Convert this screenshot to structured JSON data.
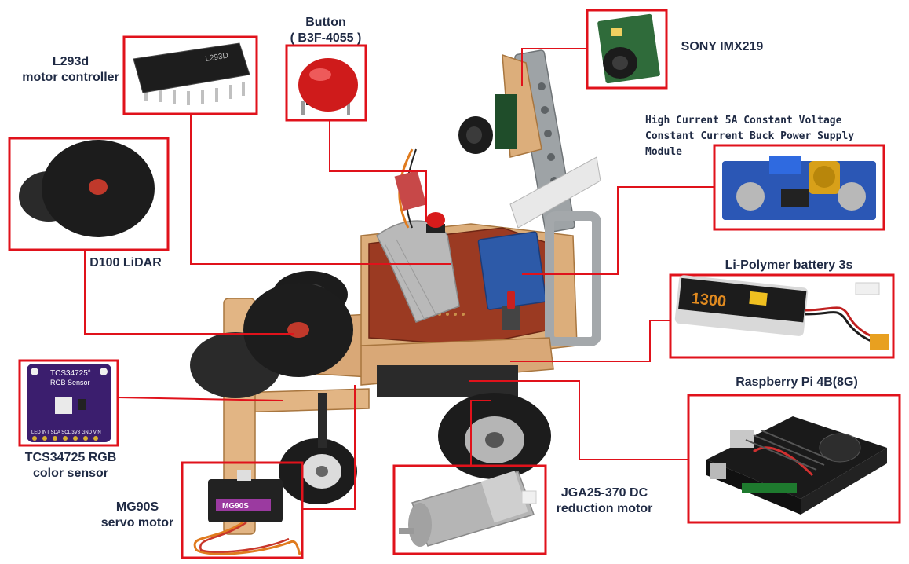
{
  "colors": {
    "callout": "#e0121b",
    "label_text": "#1f2a44"
  },
  "components": {
    "button": {
      "line1": "Button",
      "line2": "( B3F-4055 )"
    },
    "camera": {
      "name": "SONY IMX219"
    },
    "l293d": {
      "line1": "L293d",
      "line2": "motor controller",
      "chip_marking": "L293D"
    },
    "buck": {
      "line1": "High Current 5A Constant Voltage",
      "line2": "Constant Current Buck Power Supply",
      "line3": "Module"
    },
    "lidar": {
      "name": "D100 LiDAR"
    },
    "battery": {
      "name": "Li-Polymer battery 3s",
      "pack_marking": "1300"
    },
    "rgb_sensor": {
      "line1": "TCS34725 RGB",
      "line2": "color sensor",
      "board_title": "TCS34725°",
      "board_subtitle": "RGB Sensor",
      "pins": "LED INT SDA SCL 3V3 GND VIN"
    },
    "raspberry_pi": {
      "name": "Raspberry Pi  4B(8G)"
    },
    "servo": {
      "line1": "MG90S",
      "line2": "servo motor",
      "body_marking": "MG90S"
    },
    "dc_motor": {
      "line1": "JGA25-370 DC",
      "line2": "reduction motor"
    }
  }
}
